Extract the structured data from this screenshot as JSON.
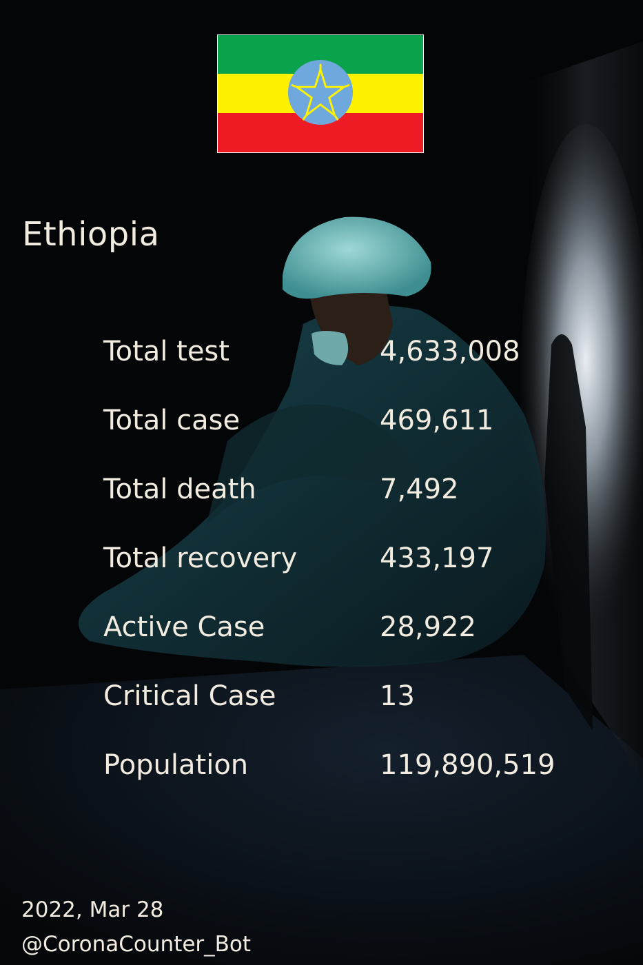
{
  "country": "Ethiopia",
  "flag": {
    "green": "#0aa24a",
    "yellow": "#fef200",
    "red": "#ed1c24",
    "emblem_blue": "#6fa8dc",
    "emblem_star": "#fef200"
  },
  "stats": [
    {
      "label": "Total test",
      "value": "4,633,008"
    },
    {
      "label": "Total case",
      "value": "469,611"
    },
    {
      "label": "Total death",
      "value": "7,492"
    },
    {
      "label": "Total recovery",
      "value": "433,197"
    },
    {
      "label": "Active Case",
      "value": "28,922"
    },
    {
      "label": "Critical Case",
      "value": "13"
    },
    {
      "label": "Population",
      "value": "119,890,519"
    }
  ],
  "footer": {
    "date": "2022, Mar 28",
    "handle": "@CoronaCounter_Bot"
  },
  "colors": {
    "text": "#f2ece0",
    "background": "#040506"
  }
}
